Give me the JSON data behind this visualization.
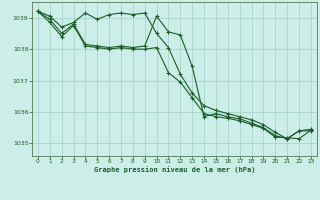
{
  "title": "Graphe pression niveau de la mer (hPa)",
  "background_color": "#cceee8",
  "grid_color": "#aad4cc",
  "line_color": "#1a5c2a",
  "xlim": [
    -0.5,
    23.5
  ],
  "ylim": [
    1034.6,
    1039.5
  ],
  "yticks": [
    1035,
    1036,
    1037,
    1038,
    1039
  ],
  "xticks": [
    0,
    1,
    2,
    3,
    4,
    5,
    6,
    7,
    8,
    9,
    10,
    11,
    12,
    13,
    14,
    15,
    16,
    17,
    18,
    19,
    20,
    21,
    22,
    23
  ],
  "series": [
    [
      1039.2,
      1039.05,
      1038.7,
      1038.85,
      1039.15,
      1038.95,
      1039.1,
      1039.15,
      1039.1,
      1039.15,
      1038.5,
      1038.05,
      1037.2,
      1036.6,
      1036.2,
      1036.05,
      1035.95,
      1035.85,
      1035.75,
      1035.6,
      1035.35,
      1035.15,
      1035.4,
      1035.45
    ],
    [
      1039.2,
      1038.95,
      1038.5,
      1038.8,
      1038.15,
      1038.1,
      1038.05,
      1038.1,
      1038.05,
      1038.1,
      1039.05,
      1038.55,
      1038.45,
      1037.45,
      1035.85,
      1035.95,
      1035.85,
      1035.78,
      1035.65,
      1035.5,
      1035.25,
      1035.15,
      1035.4,
      1035.4
    ],
    [
      1039.2,
      1038.85,
      1038.4,
      1038.75,
      1038.1,
      1038.05,
      1038.0,
      1038.05,
      1038.0,
      1038.0,
      1038.05,
      1037.25,
      1036.95,
      1036.45,
      1035.95,
      1035.85,
      1035.8,
      1035.72,
      1035.6,
      1035.48,
      1035.2,
      1035.18,
      1035.15,
      1035.42
    ]
  ]
}
